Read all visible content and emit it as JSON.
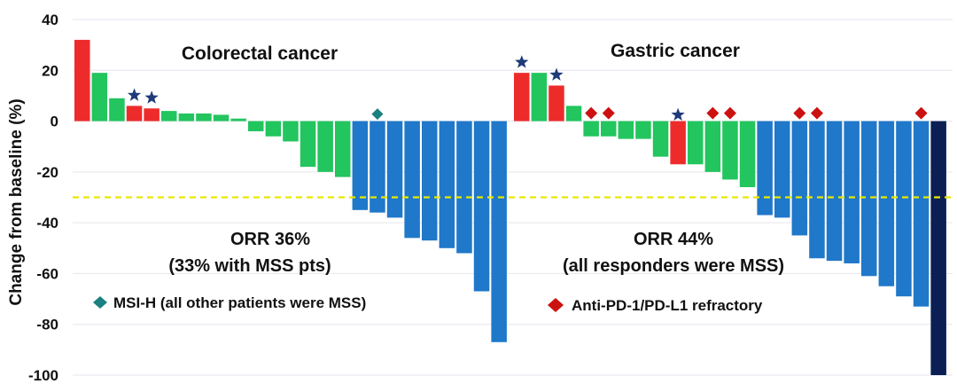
{
  "chart_data": {
    "type": "bar",
    "ylabel": "Change from baseline (%)",
    "ylim": [
      -100,
      40
    ],
    "yticks": [
      40,
      20,
      0,
      -20,
      -40,
      -60,
      -80,
      -100
    ],
    "grid": true,
    "threshold": {
      "value": -30,
      "color": "#e8e800",
      "style": "dashed"
    },
    "colors": {
      "progressive": "#ee2b2b",
      "stable": "#22c55e",
      "partial_response": "#1f78c9",
      "complete_response": "#0b1f55",
      "star": "#1e3a78",
      "msi_marker": "#1b8080",
      "refractory_marker": "#cc1111"
    },
    "panels": [
      {
        "title": "Colorectal cancer",
        "orr": "ORR 36%",
        "orr_detail": "(33% with MSS pts)",
        "bars": [
          {
            "value": 32,
            "cat": "progressive"
          },
          {
            "value": 19,
            "cat": "stable"
          },
          {
            "value": 9,
            "cat": "stable"
          },
          {
            "value": 6,
            "cat": "progressive",
            "marker": "star"
          },
          {
            "value": 5,
            "cat": "progressive",
            "marker": "star"
          },
          {
            "value": 4,
            "cat": "stable"
          },
          {
            "value": 3,
            "cat": "stable"
          },
          {
            "value": 3,
            "cat": "stable"
          },
          {
            "value": 2.5,
            "cat": "stable"
          },
          {
            "value": 1,
            "cat": "stable"
          },
          {
            "value": -4,
            "cat": "stable"
          },
          {
            "value": -6,
            "cat": "stable"
          },
          {
            "value": -8,
            "cat": "stable"
          },
          {
            "value": -18,
            "cat": "stable"
          },
          {
            "value": -20,
            "cat": "stable"
          },
          {
            "value": -22,
            "cat": "stable"
          },
          {
            "value": -35,
            "cat": "partial_response"
          },
          {
            "value": -36,
            "cat": "partial_response",
            "marker": "msi"
          },
          {
            "value": -38,
            "cat": "partial_response"
          },
          {
            "value": -46,
            "cat": "partial_response"
          },
          {
            "value": -47,
            "cat": "partial_response"
          },
          {
            "value": -50,
            "cat": "partial_response"
          },
          {
            "value": -52,
            "cat": "partial_response"
          },
          {
            "value": -67,
            "cat": "partial_response"
          },
          {
            "value": -87,
            "cat": "partial_response"
          }
        ]
      },
      {
        "title": "Gastric cancer",
        "orr": "ORR 44%",
        "orr_detail": "(all responders were MSS)",
        "bars": [
          {
            "value": 19,
            "cat": "progressive",
            "marker": "star"
          },
          {
            "value": 19,
            "cat": "stable"
          },
          {
            "value": 14,
            "cat": "progressive",
            "marker": "star"
          },
          {
            "value": 6,
            "cat": "stable"
          },
          {
            "value": -6,
            "cat": "stable",
            "marker": "refractory"
          },
          {
            "value": -6,
            "cat": "stable",
            "marker": "refractory"
          },
          {
            "value": -7,
            "cat": "stable"
          },
          {
            "value": -7,
            "cat": "stable"
          },
          {
            "value": -14,
            "cat": "stable"
          },
          {
            "value": -17,
            "cat": "progressive",
            "marker": "star"
          },
          {
            "value": -17,
            "cat": "stable"
          },
          {
            "value": -20,
            "cat": "stable",
            "marker": "refractory"
          },
          {
            "value": -23,
            "cat": "stable",
            "marker": "refractory"
          },
          {
            "value": -26,
            "cat": "stable"
          },
          {
            "value": -37,
            "cat": "partial_response"
          },
          {
            "value": -38,
            "cat": "partial_response"
          },
          {
            "value": -45,
            "cat": "partial_response",
            "marker": "refractory"
          },
          {
            "value": -54,
            "cat": "partial_response",
            "marker": "refractory"
          },
          {
            "value": -55,
            "cat": "partial_response"
          },
          {
            "value": -56,
            "cat": "partial_response"
          },
          {
            "value": -61,
            "cat": "partial_response"
          },
          {
            "value": -65,
            "cat": "partial_response"
          },
          {
            "value": -69,
            "cat": "partial_response"
          },
          {
            "value": -73,
            "cat": "partial_response",
            "marker": "refractory"
          },
          {
            "value": -100,
            "cat": "complete_response"
          }
        ]
      }
    ],
    "legend": [
      {
        "marker": "msi",
        "label": "MSI-H (all other patients were MSS)"
      },
      {
        "marker": "refractory",
        "label": "Anti-PD-1/PD-L1 refractory"
      }
    ]
  }
}
